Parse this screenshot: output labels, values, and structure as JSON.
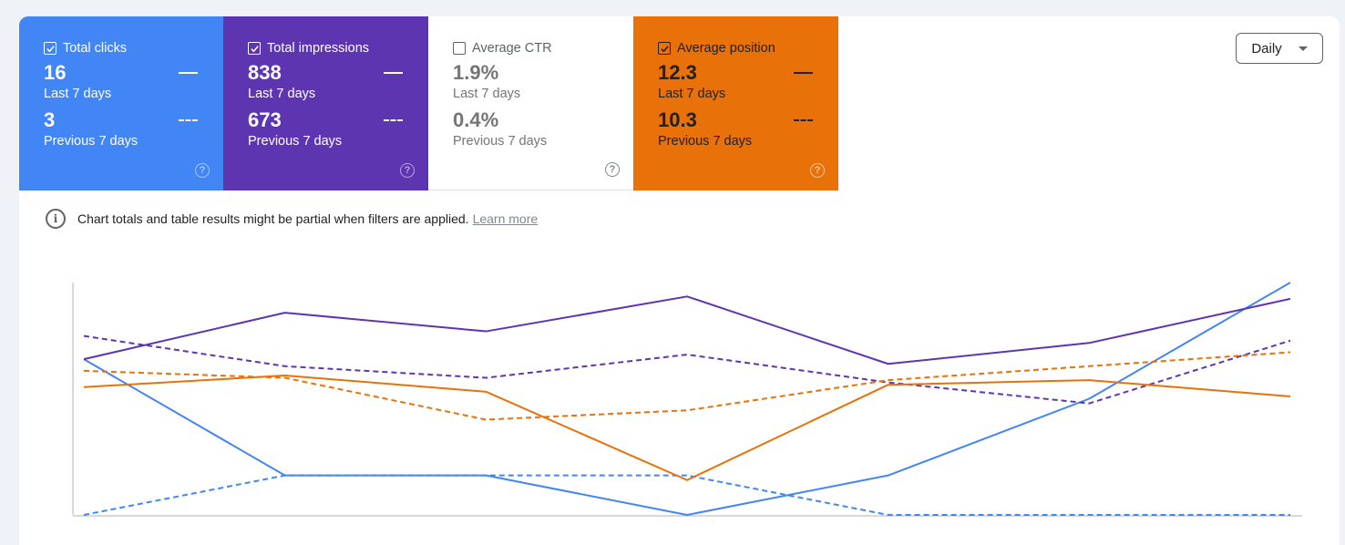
{
  "tiles": [
    {
      "label": "Total clicks",
      "checked": true,
      "current": "16",
      "current_period": "Last 7 days",
      "previous": "3",
      "previous_period": "Previous 7 days",
      "color": "#4285f4"
    },
    {
      "label": "Total impressions",
      "checked": true,
      "current": "838",
      "current_period": "Last 7 days",
      "previous": "673",
      "previous_period": "Previous 7 days",
      "color": "#5e35b1"
    },
    {
      "label": "Average CTR",
      "checked": false,
      "current": "1.9%",
      "current_period": "Last 7 days",
      "previous": "0.4%",
      "previous_period": "Previous 7 days",
      "color": "#ffffff"
    },
    {
      "label": "Average position",
      "checked": true,
      "current": "12.3",
      "current_period": "Last 7 days",
      "previous": "10.3",
      "previous_period": "Previous 7 days",
      "color": "#e8710a"
    }
  ],
  "granularity": {
    "selected": "Daily"
  },
  "info": {
    "text": "Chart totals and table results might be partial when filters are applied.",
    "link": "Learn more"
  },
  "icons": {
    "checkbox": "checkbox-icon",
    "help": "help-circle-icon",
    "info": "info-icon",
    "dropdown": "caret-down-icon"
  },
  "chart_data": {
    "type": "line",
    "title": "",
    "xlabel": "",
    "ylabel": "",
    "x": [
      1,
      2,
      3,
      4,
      5,
      6,
      7
    ],
    "ylim": [
      0,
      1
    ],
    "grid": false,
    "note": "relative scale, no tick labels shown",
    "series": [
      {
        "name": "Total clicks - Last 7 days",
        "style": "solid",
        "color": "#4285f4",
        "values": [
          0.67,
          0.17,
          0.17,
          0.0,
          0.17,
          0.5,
          1.0
        ]
      },
      {
        "name": "Total clicks - Previous 7 days",
        "style": "dashed",
        "color": "#4285f4",
        "values": [
          0.0,
          0.17,
          0.17,
          0.17,
          0.0,
          0.0,
          0.0
        ]
      },
      {
        "name": "Total impressions - Last 7 days",
        "style": "solid",
        "color": "#5e35b1",
        "values": [
          0.67,
          0.87,
          0.79,
          0.94,
          0.65,
          0.74,
          0.93
        ]
      },
      {
        "name": "Total impressions - Previous 7 days",
        "style": "dashed",
        "color": "#5e35b1",
        "values": [
          0.77,
          0.64,
          0.59,
          0.69,
          0.57,
          0.48,
          0.75
        ]
      },
      {
        "name": "Average position - Last 7 days",
        "style": "solid",
        "color": "#e8710a",
        "values": [
          0.55,
          0.6,
          0.53,
          0.15,
          0.56,
          0.58,
          0.51
        ]
      },
      {
        "name": "Average position - Previous 7 days",
        "style": "dashed",
        "color": "#e8710a",
        "values": [
          0.62,
          0.59,
          0.41,
          0.45,
          0.58,
          0.64,
          0.7
        ]
      }
    ]
  }
}
